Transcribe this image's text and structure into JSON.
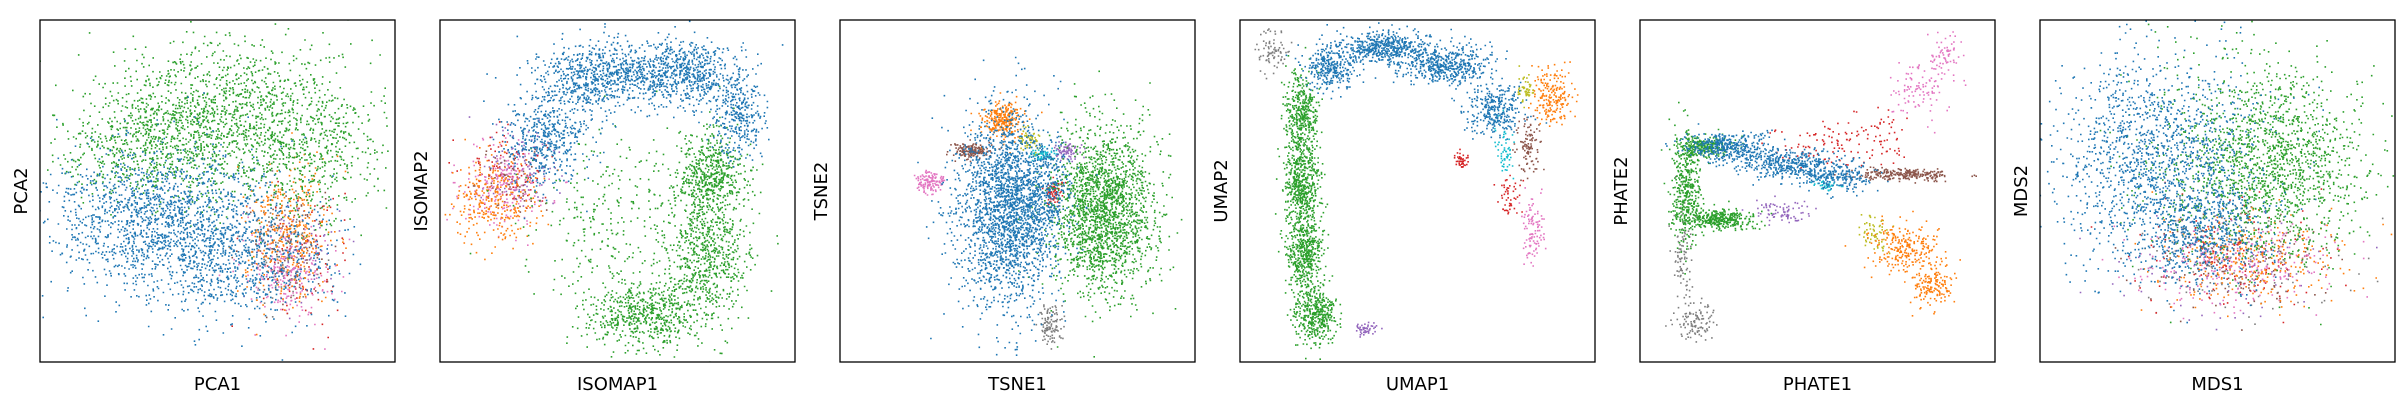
{
  "figure": {
    "palette": {
      "blue": "#1f77b4",
      "orange": "#ff7f0e",
      "green": "#2ca02c",
      "red": "#d62728",
      "purple": "#9467bd",
      "brown": "#8c564b",
      "pink": "#e377c2",
      "gray": "#7f7f7f",
      "olive": "#bcbd22",
      "cyan": "#17becf"
    }
  },
  "chart_data": [
    {
      "type": "scatter",
      "xlabel": "PCA1",
      "ylabel": "PCA2",
      "ticks": "none",
      "grid": false,
      "legend": "none",
      "xlim": [
        0,
        1
      ],
      "ylim": [
        0,
        1
      ],
      "series": [
        {
          "color": "green",
          "clusters": [
            {
              "x": 0.52,
              "y": 0.72,
              "sx": 0.19,
              "sy": 0.11,
              "n": 1400
            },
            {
              "x": 0.3,
              "y": 0.62,
              "sx": 0.12,
              "sy": 0.08,
              "n": 500
            },
            {
              "x": 0.75,
              "y": 0.6,
              "sx": 0.1,
              "sy": 0.1,
              "n": 400
            }
          ]
        },
        {
          "color": "blue",
          "clusters": [
            {
              "x": 0.33,
              "y": 0.42,
              "sx": 0.16,
              "sy": 0.1,
              "n": 1500
            },
            {
              "x": 0.55,
              "y": 0.3,
              "sx": 0.14,
              "sy": 0.09,
              "n": 700
            }
          ]
        },
        {
          "color": "orange",
          "clusters": [
            {
              "x": 0.7,
              "y": 0.38,
              "sx": 0.06,
              "sy": 0.1,
              "n": 350
            }
          ]
        },
        {
          "color": "pink",
          "clusters": [
            {
              "x": 0.7,
              "y": 0.26,
              "sx": 0.06,
              "sy": 0.07,
              "n": 220
            }
          ]
        },
        {
          "color": "red",
          "clusters": [
            {
              "x": 0.74,
              "y": 0.3,
              "sx": 0.06,
              "sy": 0.09,
              "n": 80
            }
          ]
        },
        {
          "color": "gray",
          "clusters": [
            {
              "x": 0.68,
              "y": 0.32,
              "sx": 0.05,
              "sy": 0.08,
              "n": 90
            }
          ]
        },
        {
          "color": "brown",
          "clusters": [
            {
              "x": 0.7,
              "y": 0.34,
              "sx": 0.06,
              "sy": 0.08,
              "n": 120
            }
          ]
        },
        {
          "color": "purple",
          "clusters": [
            {
              "x": 0.72,
              "y": 0.34,
              "sx": 0.06,
              "sy": 0.08,
              "n": 80
            }
          ]
        }
      ]
    },
    {
      "type": "scatter",
      "xlabel": "ISOMAP1",
      "ylabel": "ISOMAP2",
      "ticks": "none",
      "grid": false,
      "legend": "none",
      "xlim": [
        0,
        1
      ],
      "ylim": [
        0,
        1
      ],
      "series": [
        {
          "color": "blue",
          "clusters": [
            {
              "x": 0.3,
              "y": 0.66,
              "sx": 0.06,
              "sy": 0.07,
              "n": 500
            },
            {
              "x": 0.45,
              "y": 0.84,
              "sx": 0.08,
              "sy": 0.05,
              "n": 700
            },
            {
              "x": 0.68,
              "y": 0.85,
              "sx": 0.08,
              "sy": 0.05,
              "n": 700
            },
            {
              "x": 0.84,
              "y": 0.72,
              "sx": 0.04,
              "sy": 0.06,
              "n": 300
            }
          ]
        },
        {
          "color": "green",
          "clusters": [
            {
              "x": 0.76,
              "y": 0.55,
              "sx": 0.05,
              "sy": 0.07,
              "n": 600
            },
            {
              "x": 0.75,
              "y": 0.3,
              "sx": 0.06,
              "sy": 0.08,
              "n": 600
            },
            {
              "x": 0.58,
              "y": 0.14,
              "sx": 0.08,
              "sy": 0.05,
              "n": 600
            },
            {
              "x": 0.48,
              "y": 0.4,
              "sx": 0.12,
              "sy": 0.13,
              "n": 300
            }
          ]
        },
        {
          "color": "orange",
          "clusters": [
            {
              "x": 0.15,
              "y": 0.48,
              "sx": 0.06,
              "sy": 0.07,
              "n": 300
            }
          ]
        },
        {
          "color": "pink",
          "clusters": [
            {
              "x": 0.18,
              "y": 0.52,
              "sx": 0.06,
              "sy": 0.06,
              "n": 220
            }
          ]
        },
        {
          "color": "purple",
          "clusters": [
            {
              "x": 0.22,
              "y": 0.56,
              "sx": 0.05,
              "sy": 0.06,
              "n": 120
            }
          ]
        },
        {
          "color": "red",
          "clusters": [
            {
              "x": 0.2,
              "y": 0.56,
              "sx": 0.06,
              "sy": 0.06,
              "n": 90
            }
          ]
        },
        {
          "color": "brown",
          "clusters": [
            {
              "x": 0.2,
              "y": 0.52,
              "sx": 0.05,
              "sy": 0.05,
              "n": 60
            }
          ]
        }
      ]
    },
    {
      "type": "scatter",
      "xlabel": "TSNE1",
      "ylabel": "TSNE2",
      "ticks": "none",
      "grid": false,
      "legend": "none",
      "xlim": [
        0,
        1
      ],
      "ylim": [
        0,
        1
      ],
      "series": [
        {
          "color": "blue",
          "clusters": [
            {
              "x": 0.47,
              "y": 0.45,
              "sx": 0.07,
              "sy": 0.14,
              "n": 2200
            },
            {
              "x": 0.57,
              "y": 0.5,
              "sx": 0.04,
              "sy": 0.08,
              "n": 300
            }
          ]
        },
        {
          "color": "green",
          "clusters": [
            {
              "x": 0.74,
              "y": 0.45,
              "sx": 0.07,
              "sy": 0.12,
              "n": 2000
            }
          ]
        },
        {
          "color": "orange",
          "clusters": [
            {
              "x": 0.46,
              "y": 0.71,
              "sx": 0.028,
              "sy": 0.025,
              "n": 260
            }
          ]
        },
        {
          "color": "brown",
          "clusters": [
            {
              "x": 0.37,
              "y": 0.62,
              "sx": 0.025,
              "sy": 0.013,
              "n": 170
            }
          ]
        },
        {
          "color": "pink",
          "clusters": [
            {
              "x": 0.25,
              "y": 0.53,
              "sx": 0.022,
              "sy": 0.016,
              "n": 130
            }
          ]
        },
        {
          "color": "olive",
          "clusters": [
            {
              "x": 0.53,
              "y": 0.65,
              "sx": 0.015,
              "sy": 0.015,
              "n": 60
            }
          ]
        },
        {
          "color": "cyan",
          "clusters": [
            {
              "x": 0.57,
              "y": 0.61,
              "sx": 0.02,
              "sy": 0.01,
              "n": 60
            }
          ]
        },
        {
          "color": "purple",
          "clusters": [
            {
              "x": 0.64,
              "y": 0.62,
              "sx": 0.02,
              "sy": 0.012,
              "n": 80
            }
          ]
        },
        {
          "color": "red",
          "clusters": [
            {
              "x": 0.6,
              "y": 0.5,
              "sx": 0.012,
              "sy": 0.018,
              "n": 80
            }
          ]
        },
        {
          "color": "gray",
          "clusters": [
            {
              "x": 0.59,
              "y": 0.11,
              "sx": 0.016,
              "sy": 0.03,
              "n": 110
            }
          ]
        }
      ]
    },
    {
      "type": "scatter",
      "xlabel": "UMAP1",
      "ylabel": "UMAP2",
      "ticks": "none",
      "grid": false,
      "legend": "none",
      "xlim": [
        0,
        1
      ],
      "ylim": [
        0,
        1
      ],
      "series": [
        {
          "color": "green",
          "clusters": [
            {
              "x": 0.17,
              "y": 0.72,
              "sx": 0.025,
              "sy": 0.06,
              "n": 400
            },
            {
              "x": 0.17,
              "y": 0.52,
              "sx": 0.025,
              "sy": 0.06,
              "n": 500
            },
            {
              "x": 0.18,
              "y": 0.32,
              "sx": 0.025,
              "sy": 0.06,
              "n": 500
            },
            {
              "x": 0.21,
              "y": 0.14,
              "sx": 0.03,
              "sy": 0.04,
              "n": 400
            }
          ]
        },
        {
          "color": "blue",
          "clusters": [
            {
              "x": 0.25,
              "y": 0.86,
              "sx": 0.04,
              "sy": 0.03,
              "n": 300
            },
            {
              "x": 0.4,
              "y": 0.92,
              "sx": 0.06,
              "sy": 0.025,
              "n": 500
            },
            {
              "x": 0.58,
              "y": 0.87,
              "sx": 0.06,
              "sy": 0.03,
              "n": 500
            },
            {
              "x": 0.72,
              "y": 0.74,
              "sx": 0.04,
              "sy": 0.04,
              "n": 300
            }
          ]
        },
        {
          "color": "orange",
          "clusters": [
            {
              "x": 0.88,
              "y": 0.78,
              "sx": 0.03,
              "sy": 0.04,
              "n": 200
            }
          ]
        },
        {
          "color": "olive",
          "clusters": [
            {
              "x": 0.8,
              "y": 0.8,
              "sx": 0.012,
              "sy": 0.02,
              "n": 50
            }
          ]
        },
        {
          "color": "brown",
          "clusters": [
            {
              "x": 0.81,
              "y": 0.63,
              "sx": 0.02,
              "sy": 0.04,
              "n": 100
            }
          ]
        },
        {
          "color": "cyan",
          "clusters": [
            {
              "x": 0.74,
              "y": 0.62,
              "sx": 0.012,
              "sy": 0.04,
              "n": 60
            }
          ]
        },
        {
          "color": "pink",
          "clusters": [
            {
              "x": 0.82,
              "y": 0.38,
              "sx": 0.015,
              "sy": 0.05,
              "n": 100
            }
          ]
        },
        {
          "color": "red",
          "clusters": [
            {
              "x": 0.62,
              "y": 0.59,
              "sx": 0.012,
              "sy": 0.012,
              "n": 40
            },
            {
              "x": 0.76,
              "y": 0.48,
              "sx": 0.02,
              "sy": 0.04,
              "n": 50
            }
          ]
        },
        {
          "color": "purple",
          "clusters": [
            {
              "x": 0.35,
              "y": 0.1,
              "sx": 0.015,
              "sy": 0.012,
              "n": 50
            }
          ]
        },
        {
          "color": "gray",
          "clusters": [
            {
              "x": 0.09,
              "y": 0.91,
              "sx": 0.025,
              "sy": 0.03,
              "n": 80
            }
          ]
        }
      ]
    },
    {
      "type": "scatter",
      "xlabel": "PHATE1",
      "ylabel": "PHATE2",
      "ticks": "none",
      "grid": false,
      "legend": "none",
      "xlim": [
        0,
        1
      ],
      "ylim": [
        0,
        1
      ],
      "series": [
        {
          "color": "green",
          "clusters": [
            {
              "x": 0.13,
              "y": 0.51,
              "sx": 0.02,
              "sy": 0.08,
              "n": 400
            },
            {
              "x": 0.22,
              "y": 0.42,
              "sx": 0.05,
              "sy": 0.015,
              "n": 350
            },
            {
              "x": 0.18,
              "y": 0.63,
              "sx": 0.04,
              "sy": 0.015,
              "n": 250
            }
          ]
        },
        {
          "color": "blue",
          "clusters": [
            {
              "x": 0.25,
              "y": 0.63,
              "sx": 0.06,
              "sy": 0.02,
              "n": 400
            },
            {
              "x": 0.42,
              "y": 0.58,
              "sx": 0.07,
              "sy": 0.02,
              "n": 400
            },
            {
              "x": 0.55,
              "y": 0.54,
              "sx": 0.05,
              "sy": 0.02,
              "n": 200
            }
          ]
        },
        {
          "color": "brown",
          "clusters": [
            {
              "x": 0.74,
              "y": 0.55,
              "sx": 0.07,
              "sy": 0.008,
              "n": 250
            }
          ]
        },
        {
          "color": "orange",
          "clusters": [
            {
              "x": 0.75,
              "y": 0.33,
              "sx": 0.05,
              "sy": 0.04,
              "n": 250
            },
            {
              "x": 0.82,
              "y": 0.22,
              "sx": 0.03,
              "sy": 0.03,
              "n": 150
            }
          ]
        },
        {
          "color": "pink",
          "clusters": [
            {
              "x": 0.78,
              "y": 0.8,
              "sx": 0.04,
              "sy": 0.04,
              "n": 100
            },
            {
              "x": 0.86,
              "y": 0.9,
              "sx": 0.02,
              "sy": 0.03,
              "n": 60
            }
          ]
        },
        {
          "color": "red",
          "clusters": [
            {
              "x": 0.52,
              "y": 0.64,
              "sx": 0.08,
              "sy": 0.03,
              "n": 90
            },
            {
              "x": 0.68,
              "y": 0.66,
              "sx": 0.04,
              "sy": 0.04,
              "n": 50
            }
          ]
        },
        {
          "color": "purple",
          "clusters": [
            {
              "x": 0.4,
              "y": 0.44,
              "sx": 0.04,
              "sy": 0.015,
              "n": 80
            }
          ]
        },
        {
          "color": "olive",
          "clusters": [
            {
              "x": 0.66,
              "y": 0.38,
              "sx": 0.02,
              "sy": 0.03,
              "n": 60
            }
          ]
        },
        {
          "color": "cyan",
          "clusters": [
            {
              "x": 0.52,
              "y": 0.52,
              "sx": 0.02,
              "sy": 0.01,
              "n": 40
            }
          ]
        },
        {
          "color": "gray",
          "clusters": [
            {
              "x": 0.12,
              "y": 0.3,
              "sx": 0.015,
              "sy": 0.08,
              "n": 100
            },
            {
              "x": 0.16,
              "y": 0.12,
              "sx": 0.03,
              "sy": 0.03,
              "n": 100
            }
          ]
        }
      ]
    },
    {
      "type": "scatter",
      "xlabel": "MDS1",
      "ylabel": "MDS2",
      "ticks": "none",
      "grid": false,
      "legend": "none",
      "xlim": [
        0,
        1
      ],
      "ylim": [
        0,
        1
      ],
      "series": [
        {
          "color": "blue",
          "clusters": [
            {
              "x": 0.33,
              "y": 0.6,
              "sx": 0.14,
              "sy": 0.15,
              "n": 1500
            },
            {
              "x": 0.45,
              "y": 0.38,
              "sx": 0.1,
              "sy": 0.08,
              "n": 500
            }
          ]
        },
        {
          "color": "green",
          "clusters": [
            {
              "x": 0.63,
              "y": 0.58,
              "sx": 0.14,
              "sy": 0.14,
              "n": 1700
            }
          ]
        },
        {
          "color": "orange",
          "clusters": [
            {
              "x": 0.58,
              "y": 0.3,
              "sx": 0.14,
              "sy": 0.07,
              "n": 300
            }
          ]
        },
        {
          "color": "pink",
          "clusters": [
            {
              "x": 0.55,
              "y": 0.28,
              "sx": 0.14,
              "sy": 0.06,
              "n": 250
            }
          ]
        },
        {
          "color": "red",
          "clusters": [
            {
              "x": 0.55,
              "y": 0.32,
              "sx": 0.15,
              "sy": 0.08,
              "n": 150
            }
          ]
        },
        {
          "color": "purple",
          "clusters": [
            {
              "x": 0.5,
              "y": 0.3,
              "sx": 0.15,
              "sy": 0.08,
              "n": 120
            }
          ]
        },
        {
          "color": "brown",
          "clusters": [
            {
              "x": 0.55,
              "y": 0.3,
              "sx": 0.14,
              "sy": 0.07,
              "n": 120
            }
          ]
        },
        {
          "color": "gray",
          "clusters": [
            {
              "x": 0.55,
              "y": 0.28,
              "sx": 0.14,
              "sy": 0.07,
              "n": 120
            }
          ]
        }
      ]
    }
  ]
}
